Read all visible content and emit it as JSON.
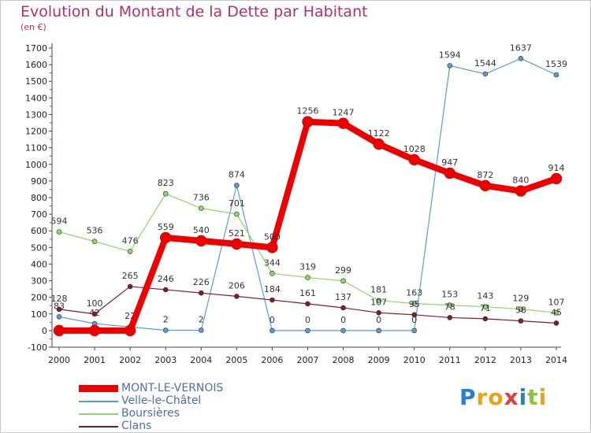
{
  "title": "Evolution du Montant de la Dette par Habitant",
  "subtitle": "(en €)",
  "logo": {
    "letters": [
      "P",
      "r",
      "o",
      "x",
      "i",
      "t",
      "i"
    ],
    "colors": [
      "#2a7fd4",
      "#e8a21c",
      "#e8a21c",
      "#e0403a",
      "#2a7fd4",
      "#8cc63f",
      "#e8a21c"
    ]
  },
  "chart_data": {
    "type": "line",
    "x": [
      "2000",
      "2001",
      "2002",
      "2003",
      "2004",
      "2005",
      "2006",
      "2007",
      "2008",
      "2009",
      "2010",
      "2011",
      "2012",
      "2013",
      "2014"
    ],
    "ylim": [
      -100,
      1700
    ],
    "yticks": [
      -100,
      0,
      100,
      200,
      300,
      400,
      500,
      600,
      700,
      800,
      900,
      1000,
      1100,
      1200,
      1300,
      1400,
      1500,
      1600,
      1700
    ],
    "grid": false,
    "legend": "bottom-left",
    "series": [
      {
        "name": "Velle-le-Châtel",
        "color": "#5b9bd5",
        "values": [
          83,
          42,
          22,
          2,
          2,
          874,
          0,
          0,
          0,
          0,
          0,
          1594,
          1544,
          1637,
          1539
        ],
        "labels": [
          "83",
          "42",
          "22",
          "2",
          "2",
          "874",
          "0",
          "0",
          "0",
          "0",
          "0",
          "1594",
          "1544",
          "1637",
          "1539"
        ]
      },
      {
        "name": "Boursières",
        "color": "#90d46a",
        "values": [
          594,
          536,
          476,
          823,
          736,
          701,
          344,
          319,
          299,
          181,
          163,
          153,
          143,
          129,
          107
        ],
        "labels": [
          "594",
          "536",
          "476",
          "823",
          "736",
          "701",
          "344",
          "319",
          "299",
          "181",
          "163",
          "153",
          "143",
          "129",
          "107"
        ]
      },
      {
        "name": "Clans",
        "color": "#7a1e2c",
        "values": [
          128,
          100,
          265,
          246,
          226,
          206,
          184,
          161,
          137,
          107,
          95,
          78,
          71,
          58,
          45
        ],
        "labels": [
          "128",
          "100",
          "265",
          "246",
          "226",
          "206",
          "184",
          "161",
          "137",
          "107",
          "95",
          "78",
          "71",
          "58",
          "45"
        ]
      },
      {
        "name": "MONT-LE-VERNOIS",
        "color": "#ee0000",
        "values": [
          0,
          0,
          0,
          559,
          540,
          521,
          500,
          1256,
          1247,
          1122,
          1028,
          947,
          872,
          840,
          914
        ],
        "labels": [
          "",
          "",
          "",
          "559",
          "540",
          "521",
          "500",
          "1256",
          "1247",
          "1122",
          "1028",
          "947",
          "872",
          "840",
          "914"
        ]
      }
    ]
  }
}
